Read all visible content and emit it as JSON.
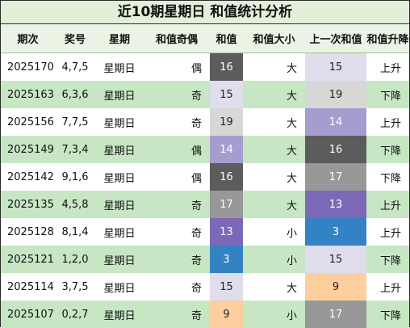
{
  "title": "近10期星期日 和值统计分析",
  "headers": [
    "期次",
    "奖号",
    "星期",
    "和值奇偶",
    "和值",
    "和值大小",
    "上一次和值",
    "和值升降"
  ],
  "sum_colors": {
    "3": "#3383c4",
    "9": "#fdcf9f",
    "13": "#7b68b6",
    "14": "#a59ccf",
    "15": "#e0dded",
    "16": "#5c5c5c",
    "17": "#989898",
    "19": "#d7d7d7"
  },
  "dark_text_sums": [
    9,
    15,
    19
  ],
  "rows": [
    {
      "issue": "2025170",
      "numbers": "4,7,5",
      "weekday": "星期日",
      "parity": "偶",
      "sum": 16,
      "size": "大",
      "prev_sum": 15,
      "trend": "上升"
    },
    {
      "issue": "2025163",
      "numbers": "6,3,6",
      "weekday": "星期日",
      "parity": "奇",
      "sum": 15,
      "size": "大",
      "prev_sum": 19,
      "trend": "下降"
    },
    {
      "issue": "2025156",
      "numbers": "7,7,5",
      "weekday": "星期日",
      "parity": "奇",
      "sum": 19,
      "size": "大",
      "prev_sum": 14,
      "trend": "上升"
    },
    {
      "issue": "2025149",
      "numbers": "7,3,4",
      "weekday": "星期日",
      "parity": "偶",
      "sum": 14,
      "size": "大",
      "prev_sum": 16,
      "trend": "下降"
    },
    {
      "issue": "2025142",
      "numbers": "9,1,6",
      "weekday": "星期日",
      "parity": "偶",
      "sum": 16,
      "size": "大",
      "prev_sum": 17,
      "trend": "下降"
    },
    {
      "issue": "2025135",
      "numbers": "4,5,8",
      "weekday": "星期日",
      "parity": "奇",
      "sum": 17,
      "size": "大",
      "prev_sum": 13,
      "trend": "上升"
    },
    {
      "issue": "2025128",
      "numbers": "8,1,4",
      "weekday": "星期日",
      "parity": "奇",
      "sum": 13,
      "size": "小",
      "prev_sum": 3,
      "trend": "上升"
    },
    {
      "issue": "2025121",
      "numbers": "1,2,0",
      "weekday": "星期日",
      "parity": "奇",
      "sum": 3,
      "size": "小",
      "prev_sum": 15,
      "trend": "下降"
    },
    {
      "issue": "2025114",
      "numbers": "3,7,5",
      "weekday": "星期日",
      "parity": "奇",
      "sum": 15,
      "size": "大",
      "prev_sum": 9,
      "trend": "上升"
    },
    {
      "issue": "2025107",
      "numbers": "0,2,7",
      "weekday": "星期日",
      "parity": "奇",
      "sum": 9,
      "size": "小",
      "prev_sum": 17,
      "trend": "下降"
    }
  ]
}
